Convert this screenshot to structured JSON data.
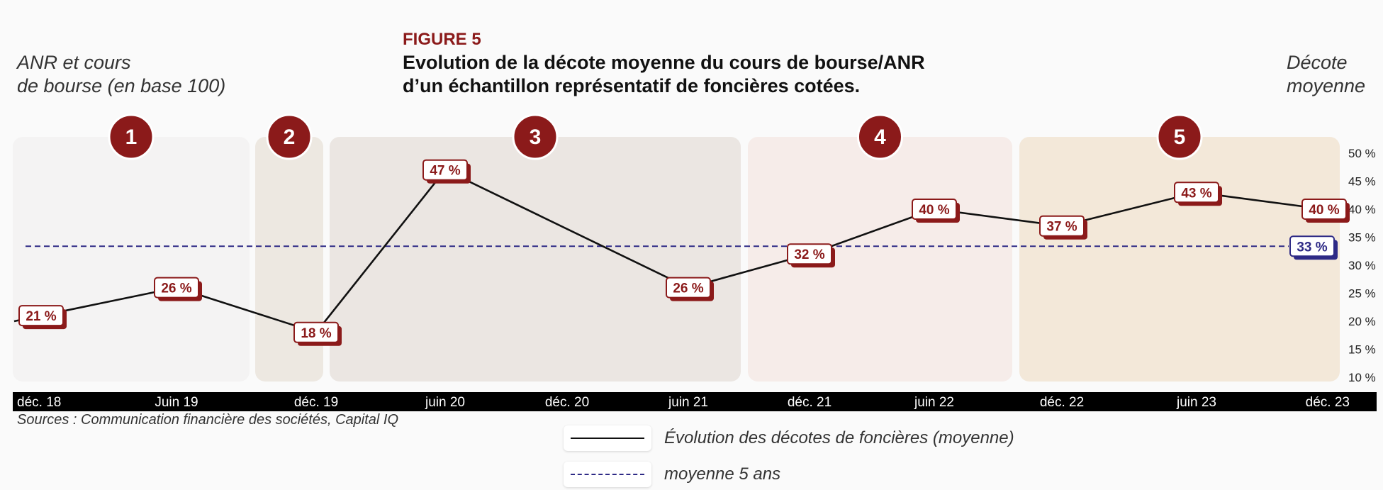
{
  "figure": {
    "label": "FIGURE 5",
    "title_line1": "Evolution de la décote moyenne du cours de bourse/ANR",
    "title_line2": "d’un échantillon représentatif de foncières cotées."
  },
  "left_axis_title": {
    "line1": "ANR et cours",
    "line2": "de bourse (en base 100)"
  },
  "right_axis_title": {
    "line1": "Décote",
    "line2": "moyenne"
  },
  "sources": "Sources : Communication financière des sociétés, Capital IQ",
  "legend": [
    {
      "label": "Évolution des décotes de foncières (moyenne)",
      "style": "solid"
    },
    {
      "label": "moyenne 5 ans",
      "style": "dashed"
    }
  ],
  "colors": {
    "accent": "#8b1a1a",
    "line": "#111111",
    "average": "#2e2a86",
    "axis_band": "#000000",
    "phase_fills": [
      "#f4f3f3",
      "#ede8e1",
      "#ebe6e2",
      "#f6ece9",
      "#f3e8d9"
    ]
  },
  "chart_data": {
    "type": "line",
    "x_ticks": [
      "déc. 18",
      "Juin 19",
      "déc. 19",
      "juin 20",
      "déc. 20",
      "juin 21",
      "déc. 21",
      "juin 22",
      "déc. 22",
      "juin 23",
      "déc. 23"
    ],
    "y_ticks": [
      "50 %",
      "45 %",
      "40 %",
      "35 %",
      "30 %",
      "25 %",
      "20 %",
      "15 %",
      "10 %"
    ],
    "ylim": [
      10,
      50
    ],
    "y_axis_side": "right",
    "series": [
      {
        "points": [
          {
            "x": "déc. 18",
            "y": 21,
            "label": "21 %"
          },
          {
            "x": "Juin 19",
            "y": 26,
            "label": "26 %"
          },
          {
            "x": "déc. 19",
            "y": 18,
            "label": "18 %"
          },
          {
            "x": "juin 20",
            "y": 47,
            "label": "47 %"
          },
          {
            "x": "juin 21",
            "y": 26,
            "label": "26 %"
          },
          {
            "x": "déc. 21",
            "y": 32,
            "label": "32 %"
          },
          {
            "x": "juin 22",
            "y": 40,
            "label": "40 %"
          },
          {
            "x": "déc. 22",
            "y": 37,
            "label": "37 %"
          },
          {
            "x": "juin 23",
            "y": 43,
            "label": "43 %"
          },
          {
            "x": "déc. 23",
            "y": 40,
            "label": "40 %"
          }
        ]
      }
    ],
    "average": {
      "y": 33,
      "label": "33 %"
    },
    "phases": [
      {
        "number": "1",
        "from": "déc. 18",
        "to": "déc. 19"
      },
      {
        "number": "2",
        "from": "déc. 19",
        "to": "déc. 19"
      },
      {
        "number": "3",
        "from": "déc. 19",
        "to": "juin 21"
      },
      {
        "number": "4",
        "from": "déc. 21",
        "to": "déc. 22"
      },
      {
        "number": "5",
        "from": "déc. 22",
        "to": "déc. 23"
      }
    ]
  }
}
